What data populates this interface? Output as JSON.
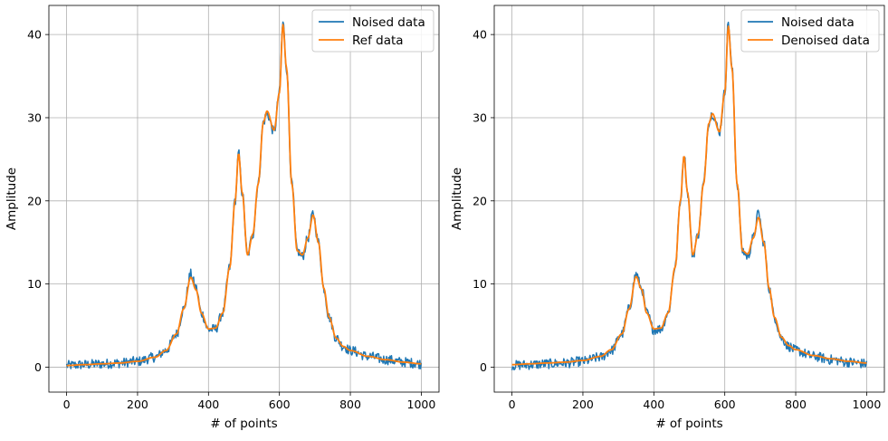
{
  "chart_data": [
    {
      "type": "line",
      "title": "",
      "xlabel": "# of points",
      "ylabel": "Amplitude",
      "xlim": [
        -50,
        1050
      ],
      "ylim": [
        -3,
        43.5
      ],
      "xticks": [
        0,
        200,
        400,
        600,
        800,
        1000
      ],
      "yticks": [
        0,
        10,
        20,
        30,
        40
      ],
      "grid": true,
      "legend": "top-right",
      "series": [
        {
          "name": "Noised data",
          "color": "#1f77b4",
          "noisy": true,
          "x": [
            0,
            50,
            100,
            150,
            200,
            250,
            280,
            310,
            330,
            350,
            365,
            380,
            400,
            420,
            440,
            460,
            475,
            485,
            495,
            510,
            525,
            540,
            555,
            565,
            585,
            600,
            610,
            620,
            635,
            650,
            665,
            680,
            695,
            710,
            725,
            740,
            760,
            780,
            800,
            850,
            900,
            950,
            1000
          ],
          "y": [
            0.2,
            0.3,
            0.4,
            0.5,
            0.7,
            1.2,
            2.0,
            4.0,
            7.0,
            11.2,
            9.5,
            6.5,
            4.5,
            4.6,
            6.5,
            12.0,
            20.0,
            25.7,
            21.0,
            13.4,
            16.0,
            22.0,
            29.5,
            30.5,
            28.3,
            33.0,
            41.5,
            36.0,
            22.0,
            14.0,
            13.3,
            15.5,
            18.5,
            15.0,
            9.5,
            6.0,
            3.5,
            2.5,
            2.0,
            1.3,
            0.9,
            0.6,
            0.4
          ]
        },
        {
          "name": "Ref data",
          "color": "#ff7f0e",
          "noisy": false,
          "x": [
            0,
            50,
            100,
            150,
            200,
            250,
            280,
            310,
            330,
            350,
            365,
            380,
            400,
            420,
            440,
            460,
            475,
            485,
            495,
            510,
            525,
            540,
            555,
            565,
            585,
            600,
            610,
            620,
            635,
            650,
            665,
            680,
            695,
            710,
            725,
            740,
            760,
            780,
            800,
            850,
            900,
            950,
            1000
          ],
          "y": [
            0.2,
            0.3,
            0.4,
            0.5,
            0.7,
            1.2,
            2.0,
            4.0,
            7.0,
            10.8,
            9.3,
            6.5,
            4.6,
            4.7,
            6.5,
            12.0,
            20.0,
            25.7,
            21.0,
            13.5,
            16.0,
            22.0,
            29.5,
            30.8,
            28.5,
            33.0,
            41.2,
            36.0,
            22.0,
            14.0,
            13.5,
            15.5,
            18.3,
            15.0,
            9.5,
            6.0,
            3.5,
            2.5,
            2.0,
            1.3,
            0.9,
            0.6,
            0.4
          ]
        }
      ]
    },
    {
      "type": "line",
      "title": "",
      "xlabel": "# of points",
      "ylabel": "Amplitude",
      "xlim": [
        -50,
        1050
      ],
      "ylim": [
        -3,
        43.5
      ],
      "xticks": [
        0,
        200,
        400,
        600,
        800,
        1000
      ],
      "yticks": [
        0,
        10,
        20,
        30,
        40
      ],
      "grid": true,
      "legend": "top-right",
      "series": [
        {
          "name": "Noised data",
          "color": "#1f77b4",
          "noisy": true,
          "x": [
            0,
            50,
            100,
            150,
            200,
            250,
            280,
            310,
            330,
            350,
            365,
            380,
            400,
            420,
            440,
            460,
            475,
            485,
            495,
            510,
            525,
            540,
            555,
            565,
            585,
            600,
            610,
            620,
            635,
            650,
            665,
            680,
            695,
            710,
            725,
            740,
            760,
            780,
            800,
            850,
            900,
            950,
            1000
          ],
          "y": [
            0.2,
            0.3,
            0.4,
            0.5,
            0.7,
            1.2,
            2.0,
            4.0,
            7.0,
            11.2,
            9.5,
            6.5,
            4.5,
            4.6,
            6.5,
            12.0,
            20.0,
            25.7,
            21.0,
            13.4,
            16.0,
            22.0,
            29.5,
            30.5,
            28.3,
            33.0,
            41.5,
            36.0,
            22.0,
            14.0,
            13.3,
            15.5,
            18.5,
            15.0,
            9.5,
            6.0,
            3.5,
            2.5,
            2.0,
            1.3,
            0.9,
            0.6,
            0.4
          ]
        },
        {
          "name": "Denoised data",
          "color": "#ff7f0e",
          "noisy": false,
          "x": [
            0,
            50,
            100,
            150,
            200,
            250,
            280,
            310,
            330,
            350,
            365,
            380,
            400,
            420,
            440,
            460,
            475,
            485,
            495,
            510,
            525,
            540,
            555,
            565,
            585,
            600,
            610,
            620,
            635,
            650,
            665,
            680,
            695,
            710,
            725,
            740,
            760,
            780,
            800,
            850,
            900,
            950,
            1000
          ],
          "y": [
            0.3,
            0.4,
            0.5,
            0.6,
            0.8,
            1.3,
            2.1,
            4.0,
            7.0,
            10.9,
            9.4,
            6.5,
            4.6,
            4.7,
            6.5,
            12.0,
            20.0,
            25.4,
            21.0,
            13.5,
            16.0,
            22.0,
            29.3,
            30.5,
            28.3,
            33.0,
            41.0,
            36.0,
            22.0,
            14.0,
            13.6,
            15.5,
            18.0,
            15.0,
            9.5,
            6.0,
            3.6,
            2.6,
            2.1,
            1.4,
            1.0,
            0.7,
            0.5
          ]
        }
      ]
    }
  ]
}
